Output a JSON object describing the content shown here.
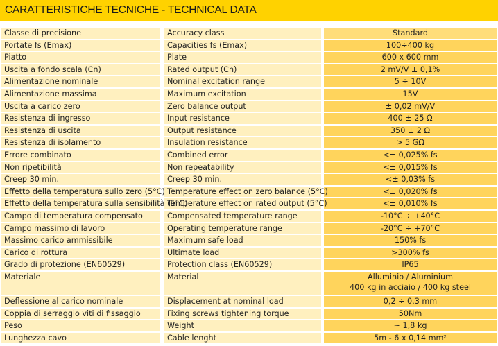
{
  "title": "CARATTERISTICHE TECNICHE - TECHNICAL DATA",
  "header": {
    "it": "Classe di precisione",
    "en": "Accuracy class",
    "value": "Standard"
  },
  "rows": [
    {
      "it": "Portate fs (Emax)",
      "en": "Capacities fs (Emax)",
      "value": "100÷400 kg"
    },
    {
      "it": "Piatto",
      "en": "Plate",
      "value": "600 x 600 mm"
    },
    {
      "it": "Uscita a fondo scala (Cn)",
      "en": "Rated output (Cn)",
      "value": "2 mV/V ± 0,1%"
    },
    {
      "it": "Alimentazione nominale",
      "en": "Nominal excitation range",
      "value": "5 ÷ 10V"
    },
    {
      "it": "Alimentazione massima",
      "en": "Maximum excitation",
      "value": "15V"
    },
    {
      "it": "Uscita a carico zero",
      "en": "Zero balance output",
      "value": "± 0,02 mV/V"
    },
    {
      "it": "Resistenza di ingresso",
      "en": "Input resistance",
      "value": "400 ± 25 Ω"
    },
    {
      "it": "Resistenza di uscita",
      "en": "Output resistance",
      "value": "350 ± 2 Ω"
    },
    {
      "it": "Resistenza di isolamento",
      "en": "Insulation resistance",
      "value": "> 5 GΩ"
    },
    {
      "it": "Errore combinato",
      "en": "Combined error",
      "value": "<± 0,025% fs"
    },
    {
      "it": "Non ripetibilità",
      "en": "Non repeatability",
      "value": "<± 0,015% fs"
    },
    {
      "it": "Creep 30 min.",
      "en": "Creep 30 min.",
      "value": "<± 0,03% fs"
    },
    {
      "it": "Effetto della temperatura sullo zero (5°C)",
      "en": "Temperature effect on zero balance (5°C)",
      "value": "<± 0,020% fs"
    },
    {
      "it": "Effetto della temperatura sulla sensibilità (5°C)",
      "en": "Temperature effect on rated output (5°C)",
      "value": "<± 0,010% fs"
    },
    {
      "it": "Campo di temperatura compensato",
      "en": "Compensated temperature range",
      "value": "-10°C ÷ +40°C"
    },
    {
      "it": "Campo massimo di lavoro",
      "en": "Operating temperature range",
      "value": "-20°C ÷ +70°C"
    },
    {
      "it": "Massimo carico ammissibile",
      "en": "Maximum safe load",
      "value": "150% fs"
    },
    {
      "it": "Carico di rottura",
      "en": "Ultimate load",
      "value": ">300% fs"
    },
    {
      "it": "Grado di protezione (EN60529)",
      "en": "Protection class (EN60529)",
      "value": "IP65"
    },
    {
      "it": "Materiale",
      "en": "Material",
      "value": "Alluminio / Aluminium",
      "value2": "400 kg in acciaio / 400 kg steel"
    },
    {
      "it": "Deflessione al carico nominale",
      "en": "Displacement at nominal load",
      "value": "0,2 ÷ 0,3 mm"
    },
    {
      "it": "Coppia di serraggio viti di fissaggio",
      "en": "Fixing screws tightening torque",
      "value": "50Nm"
    },
    {
      "it": "Peso",
      "en": "Weight",
      "value": "~ 1,8 kg"
    },
    {
      "it": "Lunghezza cavo",
      "en": "Cable lenght",
      "value": "5m - 6 x 0,14 mm²"
    }
  ],
  "colors": {
    "title_bar": "#FFD200",
    "label_cells": "#FFF0BF",
    "value_cells": "#FFD45C"
  }
}
